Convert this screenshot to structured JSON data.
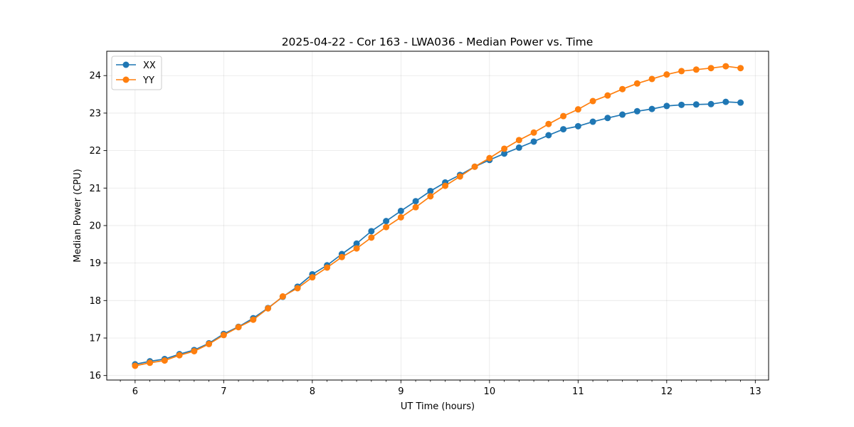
{
  "chart_data": {
    "type": "line",
    "title": "2025-04-22 - Cor 163 - LWA036 - Median Power vs. Time",
    "xlabel": "UT Time (hours)",
    "ylabel": "Median Power (CPU)",
    "xlim": [
      5.68,
      13.15
    ],
    "ylim": [
      15.88,
      24.65
    ],
    "xticks": [
      6,
      7,
      8,
      9,
      10,
      11,
      12,
      13
    ],
    "yticks": [
      16,
      17,
      18,
      19,
      20,
      21,
      22,
      23,
      24
    ],
    "grid": true,
    "legend_position": "top-left",
    "x": [
      6.0,
      6.1667,
      6.3333,
      6.5,
      6.6667,
      6.8333,
      7.0,
      7.1667,
      7.3333,
      7.5,
      7.6667,
      7.8333,
      8.0,
      8.1667,
      8.3333,
      8.5,
      8.6667,
      8.8333,
      9.0,
      9.1667,
      9.3333,
      9.5,
      9.6667,
      9.8333,
      10.0,
      10.1667,
      10.3333,
      10.5,
      10.6667,
      10.8333,
      11.0,
      11.1667,
      11.3333,
      11.5,
      11.6667,
      11.8333,
      12.0,
      12.1667,
      12.3333,
      12.5,
      12.6667,
      12.8333
    ],
    "series": [
      {
        "name": "XX",
        "color": "#1f77b4",
        "values": [
          16.3,
          16.38,
          16.44,
          16.57,
          16.68,
          16.86,
          17.11,
          17.3,
          17.53,
          17.8,
          18.1,
          18.37,
          18.7,
          18.94,
          19.24,
          19.52,
          19.85,
          20.12,
          20.39,
          20.65,
          20.92,
          21.15,
          21.35,
          21.57,
          21.75,
          21.92,
          22.08,
          22.24,
          22.41,
          22.57,
          22.65,
          22.77,
          22.87,
          22.96,
          23.05,
          23.11,
          23.19,
          23.22,
          23.23,
          23.24,
          23.3,
          23.28
        ]
      },
      {
        "name": "YY",
        "color": "#ff7f0e",
        "values": [
          16.26,
          16.34,
          16.4,
          16.54,
          16.65,
          16.84,
          17.08,
          17.29,
          17.49,
          17.79,
          18.11,
          18.33,
          18.62,
          18.88,
          19.16,
          19.39,
          19.68,
          19.96,
          20.22,
          20.49,
          20.78,
          21.06,
          21.31,
          21.57,
          21.8,
          22.05,
          22.28,
          22.48,
          22.71,
          22.92,
          23.1,
          23.32,
          23.47,
          23.64,
          23.79,
          23.91,
          24.03,
          24.12,
          24.16,
          24.2,
          24.25,
          24.2
        ]
      }
    ]
  }
}
